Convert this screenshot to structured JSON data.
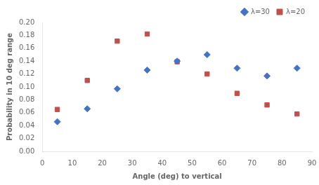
{
  "chart_data": {
    "type": "scatter",
    "xlabel": "Angle (deg) to vertical",
    "ylabel": "Probability in 10 deg range",
    "series": [
      {
        "name": "λ=30",
        "color": "#4472C4",
        "marker": "diamond",
        "x": [
          5,
          15,
          25,
          35,
          45,
          55,
          65,
          75,
          85
        ],
        "values": [
          0.046,
          0.066,
          0.097,
          0.126,
          0.14,
          0.15,
          0.129,
          0.117,
          0.129
        ]
      },
      {
        "name": "λ=20",
        "color": "#C0504D",
        "marker": "square",
        "x": [
          5,
          15,
          25,
          35,
          45,
          55,
          65,
          75,
          85
        ],
        "values": [
          0.065,
          0.11,
          0.171,
          0.182,
          0.139,
          0.12,
          0.09,
          0.072,
          0.058
        ]
      }
    ],
    "xlim": [
      0,
      90
    ],
    "xticks": [
      0,
      10,
      20,
      30,
      40,
      50,
      60,
      70,
      80,
      90
    ],
    "ylim": [
      0,
      0.2
    ],
    "yticks": [
      {
        "value": 0,
        "label": "0.00"
      },
      0.02,
      0.04,
      0.06,
      0.08,
      {
        "value": 0.1,
        "label": "0.10"
      },
      0.12,
      0.14,
      0.16,
      0.18,
      {
        "value": 0.2,
        "label": "0.20"
      }
    ],
    "grid": false,
    "legend": "upper right"
  }
}
